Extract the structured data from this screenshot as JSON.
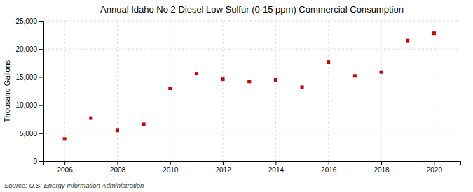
{
  "chart_data": {
    "type": "scatter",
    "title": "Annual Idaho No 2 Diesel Low Sulfur (0-15 ppm) Commercial Consumption",
    "ylabel": "Thousand Gallons",
    "annotation": "Source: U.S. Energy Information Administration",
    "x": [
      2006,
      2007,
      2008,
      2009,
      2010,
      2011,
      2012,
      2013,
      2014,
      2015,
      2016,
      2017,
      2018,
      2019,
      2020
    ],
    "values": [
      4000,
      7700,
      5500,
      6600,
      13000,
      15600,
      14600,
      14200,
      14500,
      13200,
      17700,
      15200,
      15900,
      21500,
      22800
    ],
    "color": "#cc0000",
    "marker": "square",
    "xlim": [
      2005.2,
      2021.0
    ],
    "xticks": [
      2006,
      2008,
      2010,
      2012,
      2014,
      2016,
      2018,
      2020
    ],
    "ylim": [
      0,
      25000
    ],
    "yticks": [
      0,
      {
        "value": 5000,
        "label": "5,000"
      },
      {
        "value": 10000,
        "label": "10,000"
      },
      {
        "value": 15000,
        "label": "15,000"
      },
      {
        "value": 20000,
        "label": "20,000"
      },
      {
        "value": 25000,
        "label": "25,000"
      }
    ],
    "grid": true
  }
}
